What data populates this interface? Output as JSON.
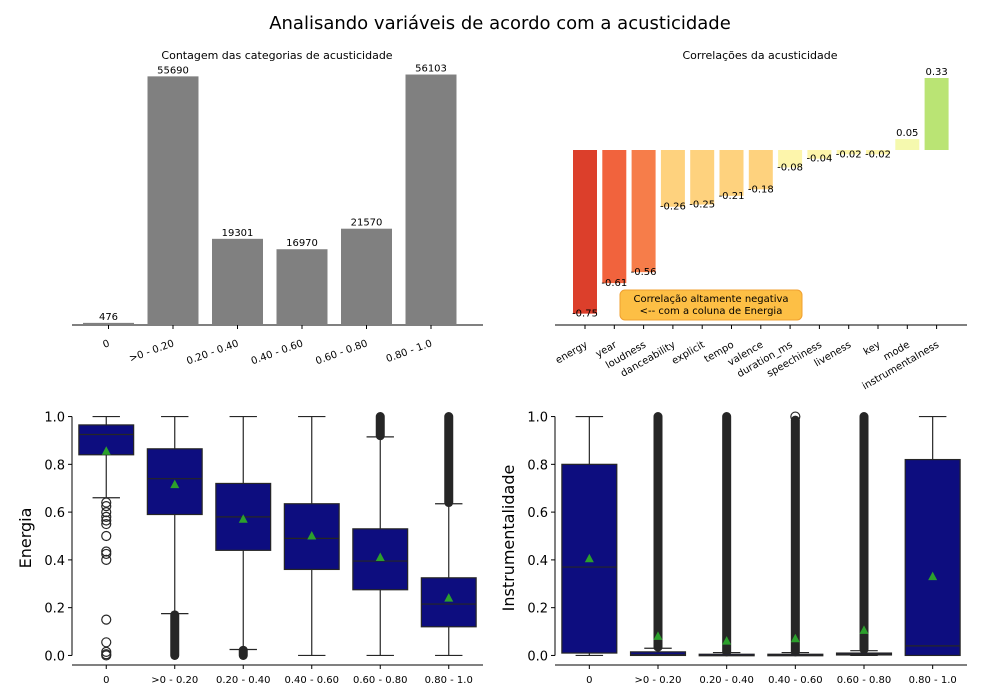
{
  "figure": {
    "title": "Analisando variáveis de acordo com a acusticidade"
  },
  "chart_data": [
    {
      "type": "bar",
      "title": "Contagem das categorias de acusticidade",
      "categories": [
        "0",
        ">0 - 0.20",
        "0.20 - 0.40",
        "0.40 - 0.60",
        "0.60 - 0.80",
        "0.80 - 1.0"
      ],
      "values": [
        476,
        55690,
        19301,
        16970,
        21570,
        56103
      ],
      "data_labels": [
        "476",
        "55690",
        "19301",
        "16970",
        "21570",
        "56103"
      ],
      "ylim": [
        0,
        58908
      ],
      "color": "#808080",
      "grid": false
    },
    {
      "type": "bar",
      "title": "Correlações da acusticidade",
      "categories": [
        "energy",
        "year",
        "loudness",
        "danceability",
        "explicit",
        "tempo",
        "valence",
        "duration_ms",
        "speechiness",
        "liveness",
        "key",
        "mode",
        "instrumentalness"
      ],
      "values": [
        -0.75,
        -0.61,
        -0.56,
        -0.26,
        -0.25,
        -0.21,
        -0.18,
        -0.08,
        -0.04,
        -0.02,
        -0.02,
        0.05,
        0.33
      ],
      "data_labels": [
        "-0.75",
        "-0.61",
        "-0.56",
        "-0.26",
        "-0.25",
        "-0.21",
        "-0.18",
        "-0.08",
        "-0.04",
        "-0.02",
        "-0.02",
        "0.05",
        "0.33"
      ],
      "colors": [
        "#dc3f2b",
        "#f1633d",
        "#f67d4a",
        "#fed27e",
        "#fed27e",
        "#fed27e",
        "#fed27e",
        "#fdf5ab",
        "#fdf5ab",
        "#fdf5ab",
        "#fdf5ab",
        "#f5f9ae",
        "#bae474"
      ],
      "ylim": [
        -0.8,
        0.35
      ],
      "annotation": {
        "lines": [
          "Correlação altamente negativa",
          "<-- com a coluna de Energia"
        ],
        "color": "#fdbf45"
      },
      "grid": false
    },
    {
      "type": "box",
      "ylabel": "Energia",
      "categories": [
        "0",
        ">0 - 0.20",
        "0.20 - 0.40",
        "0.40 - 0.60",
        "0.60 - 0.80",
        "0.80 - 1.0"
      ],
      "ylim": [
        -0.04,
        1.04
      ],
      "yticks": [
        "0.0",
        "0.2",
        "0.4",
        "0.6",
        "0.8",
        "1.0"
      ],
      "box_color": "#0d0d7f",
      "mean_color": "#2ca02c",
      "boxes": [
        {
          "whislo": 0.66,
          "q1": 0.84,
          "med": 0.925,
          "q3": 0.965,
          "whishi": 1.0,
          "mean": 0.855,
          "fliers": [
            0.64,
            0.625,
            0.6,
            0.58,
            0.565,
            0.55,
            0.5,
            0.435,
            0.425,
            0.4,
            0.15,
            0.055,
            0.015,
            0.005,
            0.0
          ]
        },
        {
          "whislo": 0.175,
          "q1": 0.59,
          "med": 0.74,
          "q3": 0.865,
          "whishi": 1.0,
          "mean": 0.715,
          "flier_band": [
            0.0,
            0.17
          ]
        },
        {
          "whislo": 0.025,
          "q1": 0.44,
          "med": 0.58,
          "q3": 0.72,
          "whishi": 1.0,
          "mean": 0.57,
          "flier_band": [
            0.0,
            0.022
          ]
        },
        {
          "whislo": 0.0,
          "q1": 0.36,
          "med": 0.49,
          "q3": 0.635,
          "whishi": 1.0,
          "mean": 0.5
        },
        {
          "whislo": 0.0,
          "q1": 0.275,
          "med": 0.395,
          "q3": 0.53,
          "whishi": 0.915,
          "mean": 0.41,
          "flier_band": [
            0.92,
            1.0
          ]
        },
        {
          "whislo": 0.0,
          "q1": 0.12,
          "med": 0.215,
          "q3": 0.325,
          "whishi": 0.635,
          "mean": 0.24,
          "flier_band": [
            0.64,
            1.0
          ]
        }
      ]
    },
    {
      "type": "box",
      "ylabel": "Instrumentalidade",
      "categories": [
        "0",
        ">0 - 0.20",
        "0.20 - 0.40",
        "0.40 - 0.60",
        "0.60 - 0.80",
        "0.80 - 1.0"
      ],
      "ylim": [
        -0.04,
        1.04
      ],
      "yticks": [
        "0.0",
        "0.2",
        "0.4",
        "0.6",
        "0.8",
        "1.0"
      ],
      "box_color": "#0d0d7f",
      "mean_color": "#2ca02c",
      "boxes": [
        {
          "whislo": 0.0,
          "q1": 0.01,
          "med": 0.37,
          "q3": 0.8,
          "whishi": 1.0,
          "mean": 0.405
        },
        {
          "whislo": 0.0,
          "q1": 0.0,
          "med": 0.003,
          "q3": 0.015,
          "whishi": 0.03,
          "mean": 0.08,
          "flier_band": [
            0.035,
            1.0
          ]
        },
        {
          "whislo": 0.0,
          "q1": 0.0,
          "med": 0.0,
          "q3": 0.005,
          "whishi": 0.012,
          "mean": 0.06,
          "flier_band": [
            0.015,
            1.0
          ]
        },
        {
          "whislo": 0.0,
          "q1": 0.0,
          "med": 0.001,
          "q3": 0.005,
          "whishi": 0.012,
          "mean": 0.07,
          "flier_band": [
            0.015,
            0.985
          ],
          "fliers": [
            1.0
          ]
        },
        {
          "whislo": 0.0,
          "q1": 0.002,
          "med": 0.005,
          "q3": 0.01,
          "whishi": 0.02,
          "mean": 0.105,
          "flier_band": [
            0.025,
            1.0
          ]
        },
        {
          "whislo": 0.0,
          "q1": 0.0,
          "med": 0.04,
          "q3": 0.82,
          "whishi": 1.0,
          "mean": 0.33
        }
      ]
    }
  ]
}
